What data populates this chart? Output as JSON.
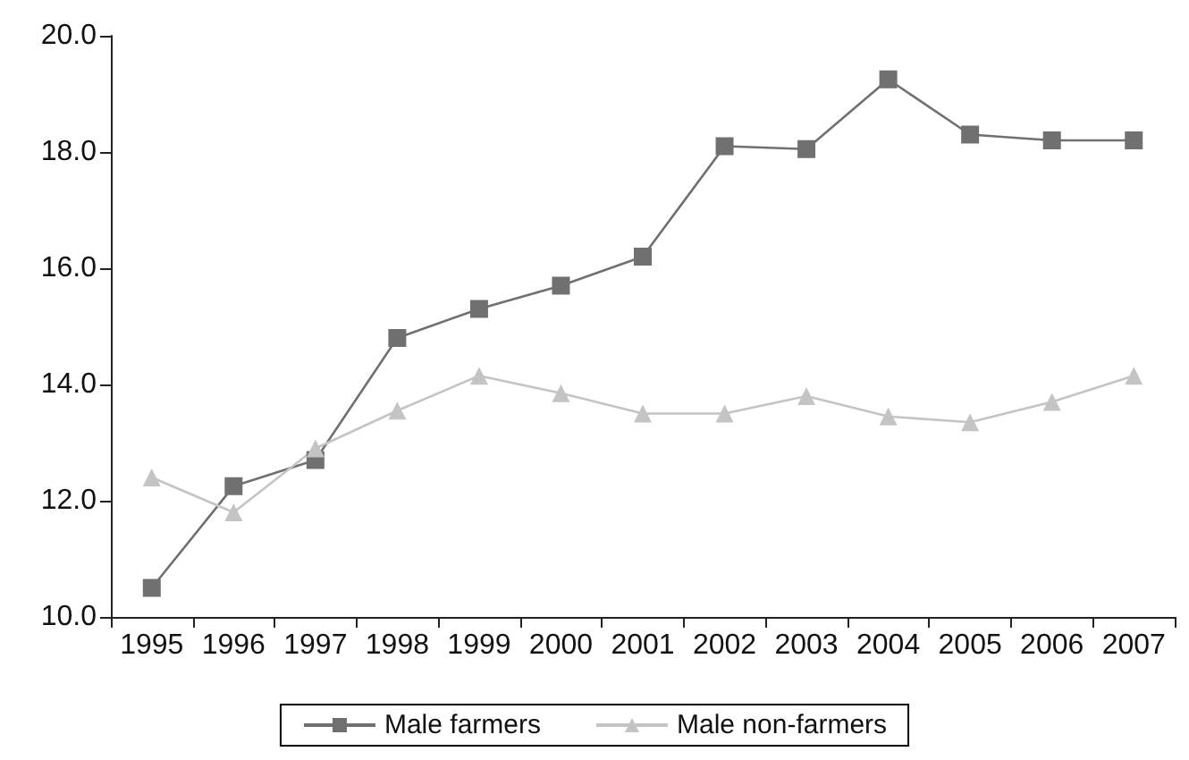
{
  "chart_data": {
    "type": "line",
    "categories": [
      "1995",
      "1996",
      "1997",
      "1998",
      "1999",
      "2000",
      "2001",
      "2002",
      "2003",
      "2004",
      "2005",
      "2006",
      "2007"
    ],
    "series": [
      {
        "name": "Male farmers",
        "color": "#707070",
        "marker": "square",
        "values": [
          10.5,
          12.25,
          12.7,
          14.8,
          15.3,
          15.7,
          16.2,
          18.1,
          18.05,
          19.25,
          18.3,
          18.2,
          18.2
        ]
      },
      {
        "name": "Male non-farmers",
        "color": "#c4c4c4",
        "marker": "triangle",
        "values": [
          12.4,
          11.8,
          12.9,
          13.55,
          14.15,
          13.85,
          13.5,
          13.5,
          13.8,
          13.45,
          13.35,
          13.7,
          14.15
        ]
      }
    ],
    "ylim": [
      10,
      20
    ],
    "yticks": [
      {
        "value": 10,
        "label": "10.0"
      },
      {
        "value": 12,
        "label": "12.0"
      },
      {
        "value": 14,
        "label": "14.0"
      },
      {
        "value": 16,
        "label": "16.0"
      },
      {
        "value": 18,
        "label": "18.0"
      },
      {
        "value": 20,
        "label": "20.0"
      }
    ],
    "grid": false,
    "legend": "bottom",
    "line_style": "solid"
  }
}
